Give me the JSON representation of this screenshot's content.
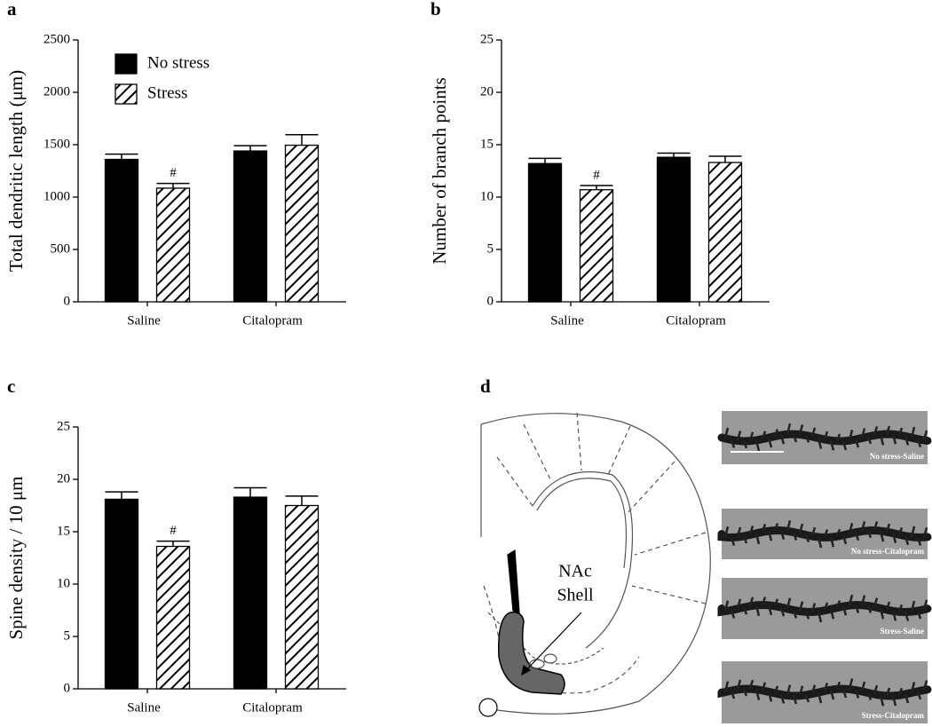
{
  "chart_data": [
    {
      "type": "bar",
      "panel": "a",
      "y_label": "Total dendritic length (μm)",
      "categories": [
        "Saline",
        "Citalopram"
      ],
      "series": [
        {
          "name": "No stress",
          "color": "#000000",
          "fill": "solid",
          "values": [
            1360,
            1440
          ],
          "errors": [
            50,
            50
          ]
        },
        {
          "name": "Stress",
          "color": "#000000",
          "fill": "hatch",
          "values": [
            1085,
            1495
          ],
          "errors": [
            45,
            100
          ]
        }
      ],
      "annotations": [
        {
          "text": "#",
          "category": "Saline",
          "series": "Stress"
        }
      ],
      "ylim": [
        0,
        2500
      ],
      "yticks": [
        0,
        500,
        1000,
        1500,
        2000,
        2500
      ],
      "legend": "upper left"
    },
    {
      "type": "bar",
      "panel": "b",
      "y_label": "Number of branch points",
      "categories": [
        "Saline",
        "Citalopram"
      ],
      "series": [
        {
          "color": "#000000",
          "fill": "solid",
          "values": [
            13.2,
            13.8
          ],
          "errors": [
            0.5,
            0.4
          ]
        },
        {
          "color": "#000000",
          "fill": "hatch",
          "values": [
            10.7,
            13.3
          ],
          "errors": [
            0.4,
            0.6
          ]
        }
      ],
      "annotations": [
        {
          "text": "#",
          "category": "Saline",
          "series": 1
        }
      ],
      "ylim": [
        0,
        25
      ],
      "yticks": [
        0,
        5,
        10,
        15,
        20,
        25
      ]
    },
    {
      "type": "bar",
      "panel": "c",
      "y_label": "Spine density / 10 μm",
      "categories": [
        "Saline",
        "Citalopram"
      ],
      "series": [
        {
          "color": "#000000",
          "fill": "solid",
          "values": [
            18.1,
            18.3
          ],
          "errors": [
            0.7,
            0.9
          ]
        },
        {
          "color": "#000000",
          "fill": "hatch",
          "values": [
            13.6,
            17.5
          ],
          "errors": [
            0.5,
            0.9
          ]
        }
      ],
      "annotations": [
        {
          "text": "#",
          "category": "Saline",
          "series": 1
        }
      ],
      "ylim": [
        0,
        25
      ],
      "yticks": [
        0,
        5,
        10,
        15,
        20,
        25
      ]
    }
  ],
  "panel_d": {
    "panel": "d",
    "region_label": [
      "NAc",
      "Shell"
    ],
    "images": [
      "No stress-Saline",
      "No stress-Citalopram",
      "Stress-Saline",
      "Stress-Citalopram"
    ]
  }
}
